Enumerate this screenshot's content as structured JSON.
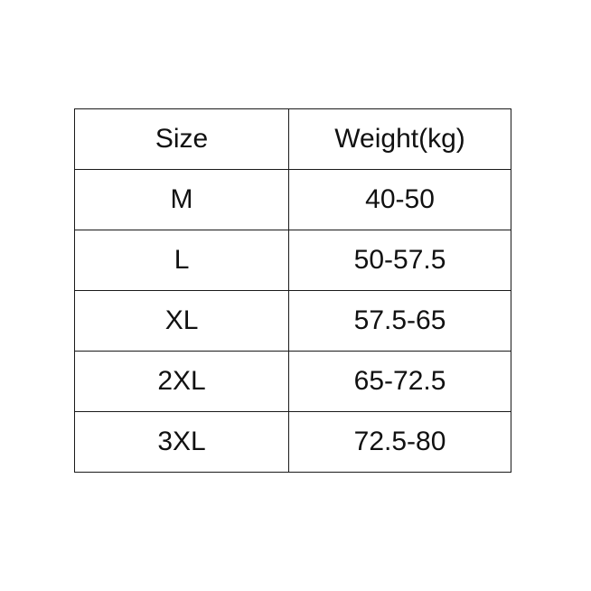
{
  "table": {
    "headers": [
      "Size",
      "Weight(kg)"
    ],
    "rows": [
      [
        "M",
        "40-50"
      ],
      [
        "L",
        "50-57.5"
      ],
      [
        "XL",
        "57.5-65"
      ],
      [
        "2XL",
        "65-72.5"
      ],
      [
        "3XL",
        "72.5-80"
      ]
    ]
  }
}
